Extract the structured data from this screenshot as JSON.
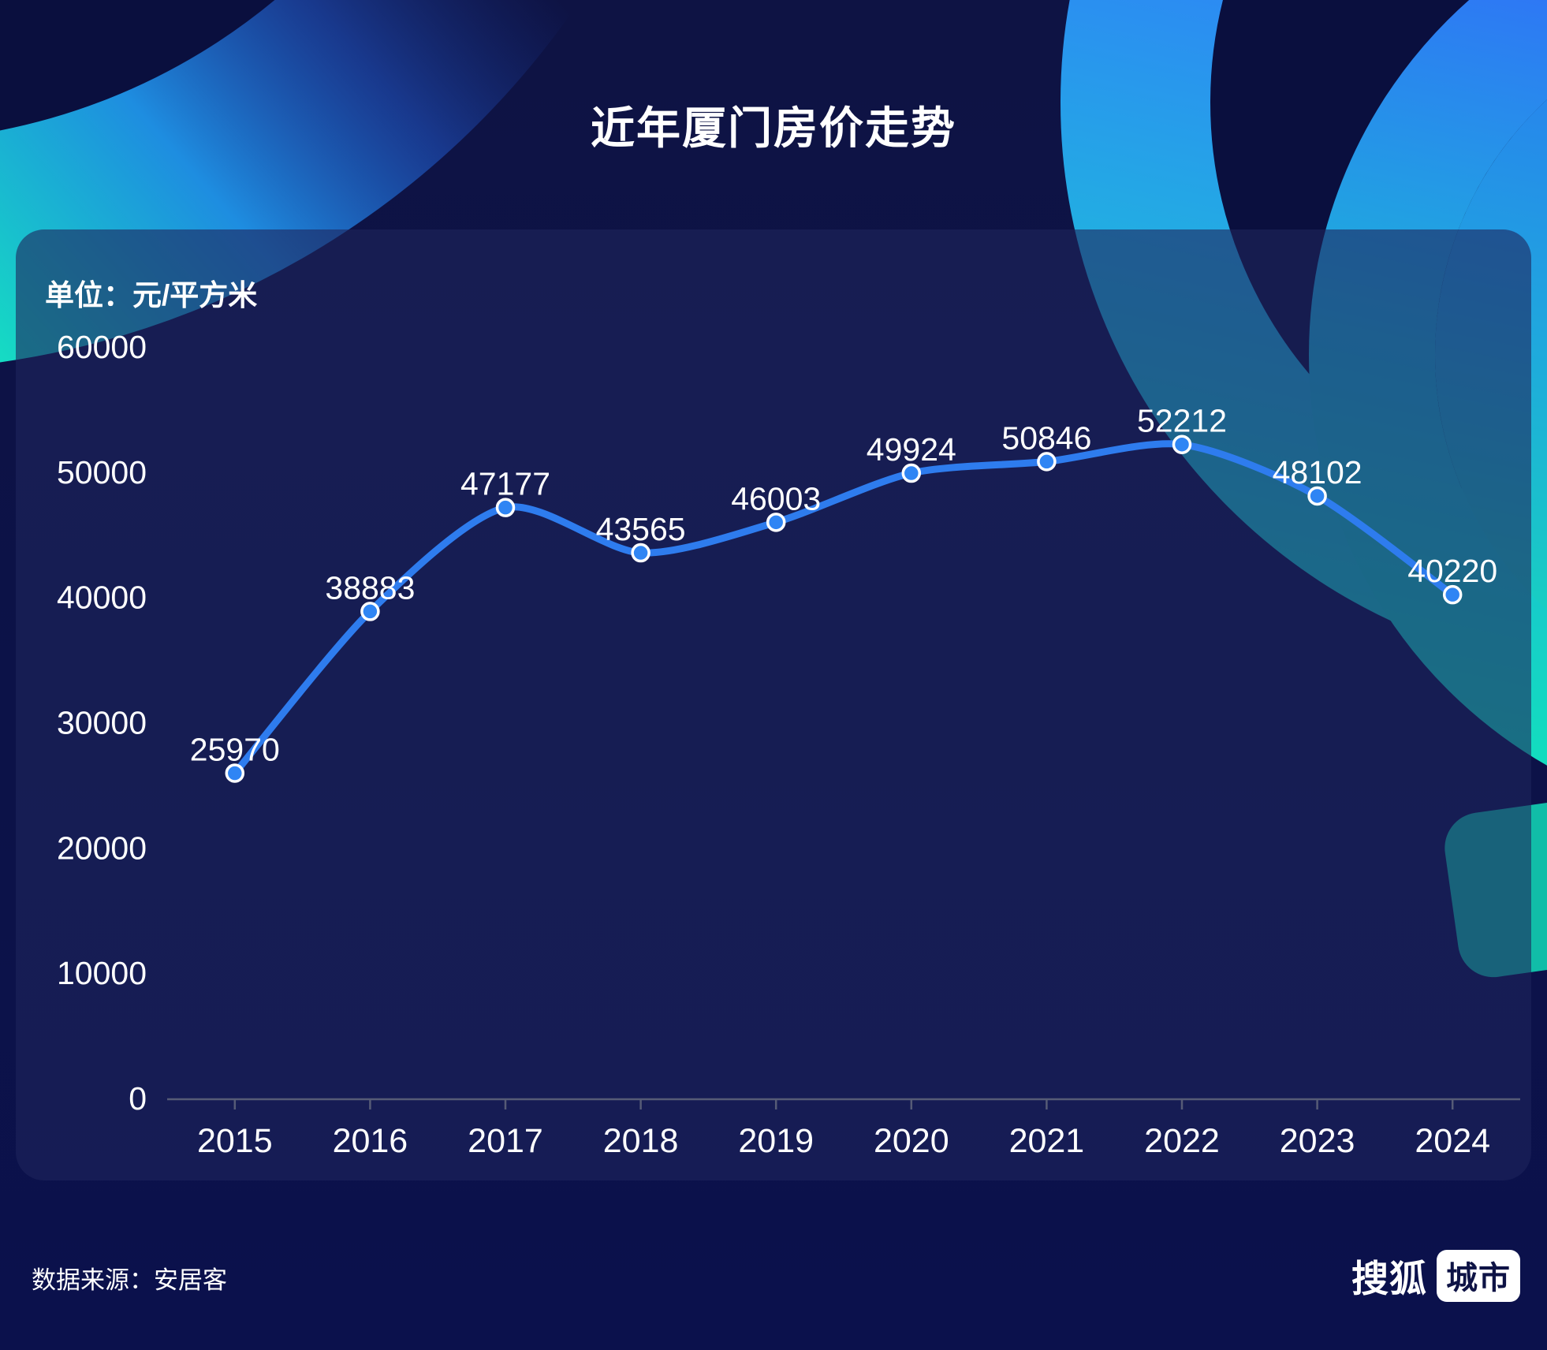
{
  "title": "近年厦门房价走势",
  "unit_label": "单位：元/平方米",
  "source": "数据来源：安居客",
  "logo": {
    "part1": "搜狐",
    "part2": "城市"
  },
  "colors": {
    "background": "#0e1344",
    "panel": "rgba(30,36,92,0.6)",
    "line": "#2e7cee",
    "marker_fill": "#2f85f4",
    "marker_stroke": "#ffffff",
    "axis": "#565b76",
    "text": "#ffffff",
    "accent_teal": "#13dcbf",
    "accent_blue": "#2f80f8"
  },
  "chart_data": {
    "type": "line",
    "smooth": true,
    "title": "近年厦门房价走势",
    "ylabel": "元/平方米",
    "categories": [
      "2015",
      "2016",
      "2017",
      "2018",
      "2019",
      "2020",
      "2021",
      "2022",
      "2023",
      "2024"
    ],
    "values": [
      25970,
      38883,
      47177,
      43565,
      46003,
      49924,
      50846,
      52212,
      48102,
      40220
    ],
    "ylim": [
      0,
      60000
    ],
    "y_ticks": [
      0,
      10000,
      20000,
      30000,
      40000,
      50000,
      60000
    ],
    "grid": false,
    "legend": "none",
    "data_labels": true
  }
}
